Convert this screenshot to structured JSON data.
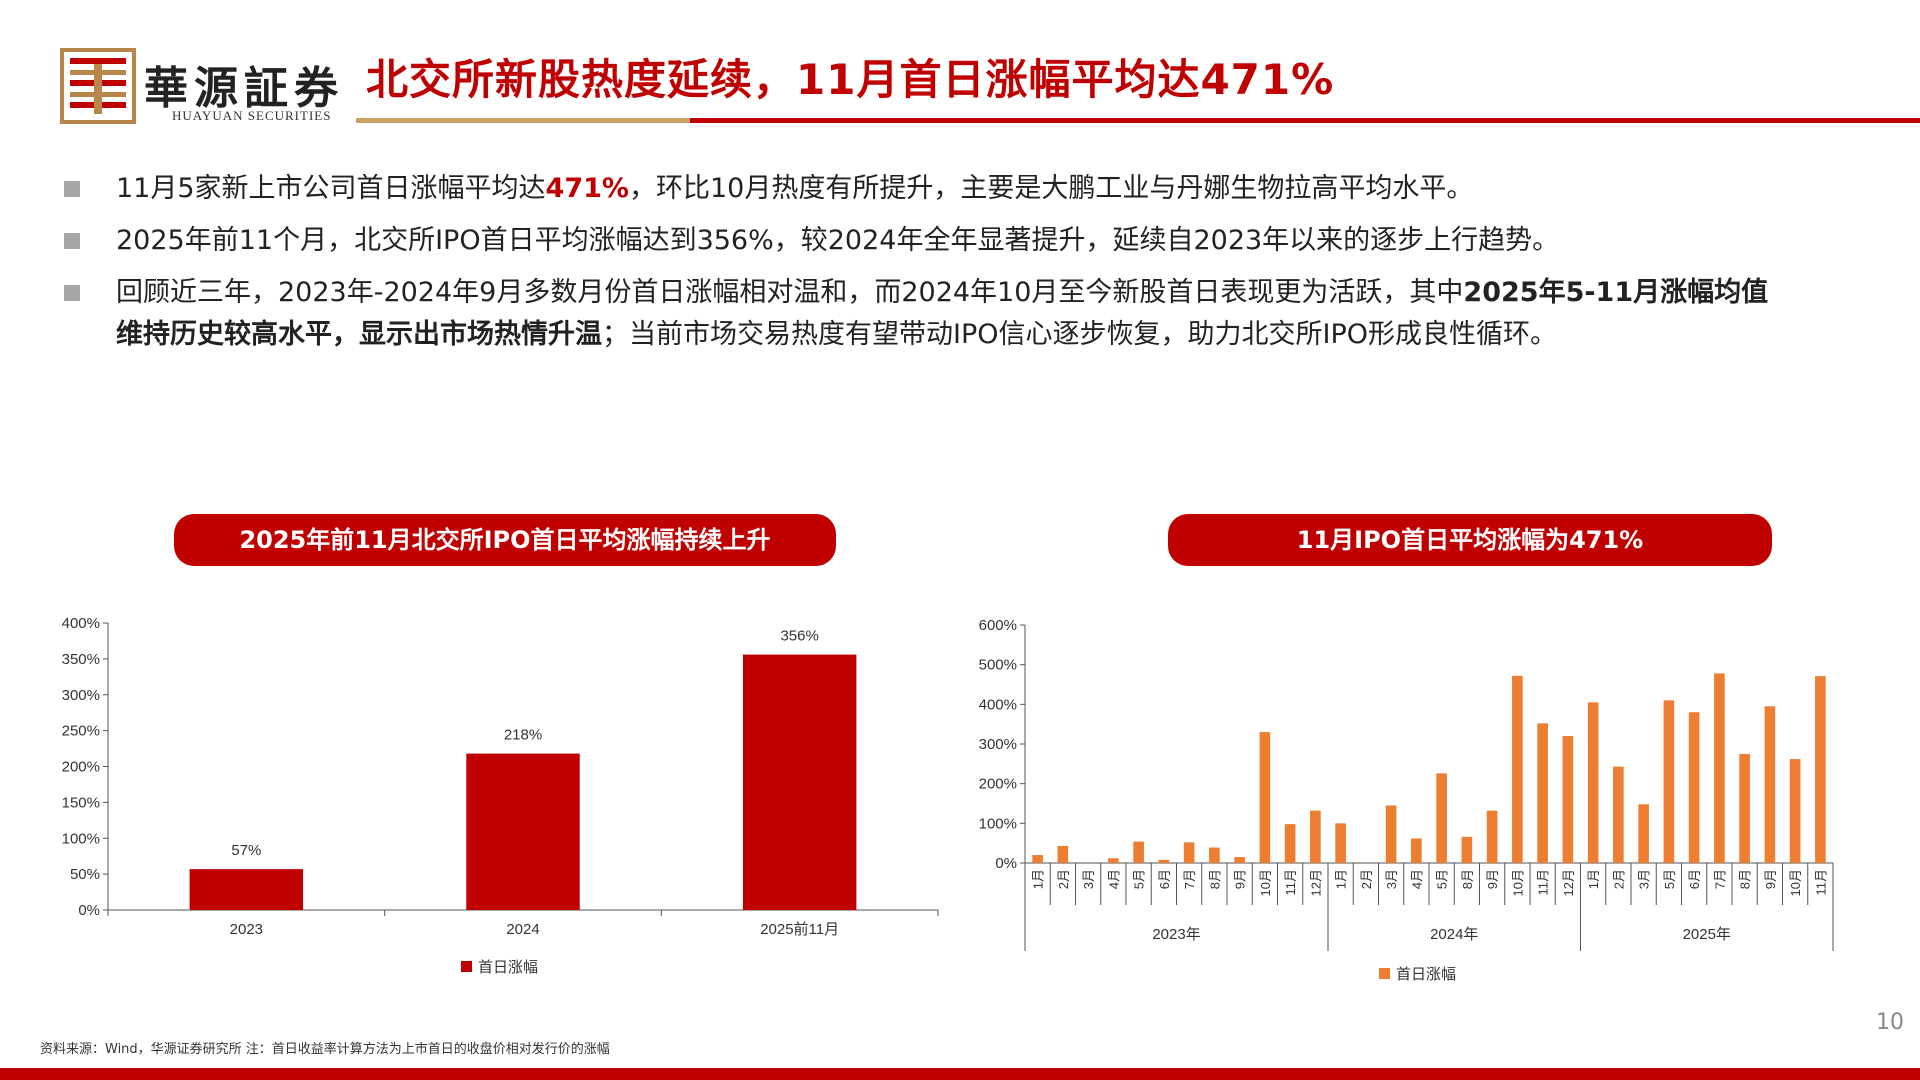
{
  "header": {
    "logo_cn": "華源証券",
    "logo_en": "HUAYUAN SECURITIES",
    "title": "北交所新股热度延续，11月首日涨幅平均达471%"
  },
  "bullets": [
    {
      "pre": "11月5家新上市公司首日涨幅平均达",
      "highlight": "471%",
      "post": "，环比10月热度有所提升，主要是大鹏工业与丹娜生物拉高平均水平。"
    },
    {
      "text": "2025年前11个月，北交所IPO首日平均涨幅达到356%，较2024年全年显著提升，延续自2023年以来的逐步上行趋势。"
    },
    {
      "pre": "回顾近三年，2023年-2024年9月多数月份首日涨幅相对温和，而2024年10月至今新股首日表现更为活跃，其中",
      "bold": "2025年5-11月涨幅均值维持历史较高水平，显示出市场热情升温",
      "post": "；当前市场交易热度有望带动IPO信心逐步恢复，助力北交所IPO形成良性循环。"
    }
  ],
  "pills": {
    "left": "2025年前11月北交所IPO首日平均涨幅持续上升",
    "right": "11月IPO首日平均涨幅为471%"
  },
  "chart_data": [
    {
      "type": "bar",
      "categories": [
        "2023",
        "2024",
        "2025前11月"
      ],
      "series": [
        {
          "name": "首日涨幅",
          "values": [
            57,
            218,
            356
          ]
        }
      ],
      "data_labels": [
        "57%",
        "218%",
        "356%"
      ],
      "ylim": [
        0,
        400
      ],
      "yticks": [
        "0%",
        "50%",
        "100%",
        "150%",
        "200%",
        "250%",
        "300%",
        "350%",
        "400%"
      ],
      "legend_position": "bottom",
      "color": "#c00000"
    },
    {
      "type": "bar",
      "categories": [
        "1月",
        "2月",
        "3月",
        "4月",
        "5月",
        "6月",
        "7月",
        "8月",
        "9月",
        "10月",
        "11月",
        "12月",
        "1月",
        "2月",
        "3月",
        "4月",
        "5月",
        "8月",
        "9月",
        "10月",
        "11月",
        "12月",
        "1月",
        "2月",
        "3月",
        "5月",
        "6月",
        "7月",
        "8月",
        "9月",
        "10月",
        "11月"
      ],
      "groups": [
        {
          "label": "2023年",
          "count": 12
        },
        {
          "label": "2024年",
          "count": 10
        },
        {
          "label": "2025年",
          "count": 10
        }
      ],
      "series": [
        {
          "name": "首日涨幅",
          "values": [
            20,
            43,
            0,
            12,
            54,
            8,
            52,
            39,
            15,
            330,
            98,
            132,
            100,
            0,
            145,
            62,
            226,
            66,
            132,
            472,
            352,
            320,
            405,
            243,
            148,
            410,
            380,
            478,
            275,
            395,
            262,
            471
          ]
        }
      ],
      "ylim": [
        0,
        600
      ],
      "yticks": [
        "0%",
        "100%",
        "200%",
        "300%",
        "400%",
        "500%",
        "600%"
      ],
      "legend_position": "bottom",
      "color": "#ed7d31"
    }
  ],
  "footnote": "资料来源：Wind，华源证券研究所  注：首日收益率计算方法为上市首日的收盘价相对发行价的涨幅",
  "page_number": "10"
}
